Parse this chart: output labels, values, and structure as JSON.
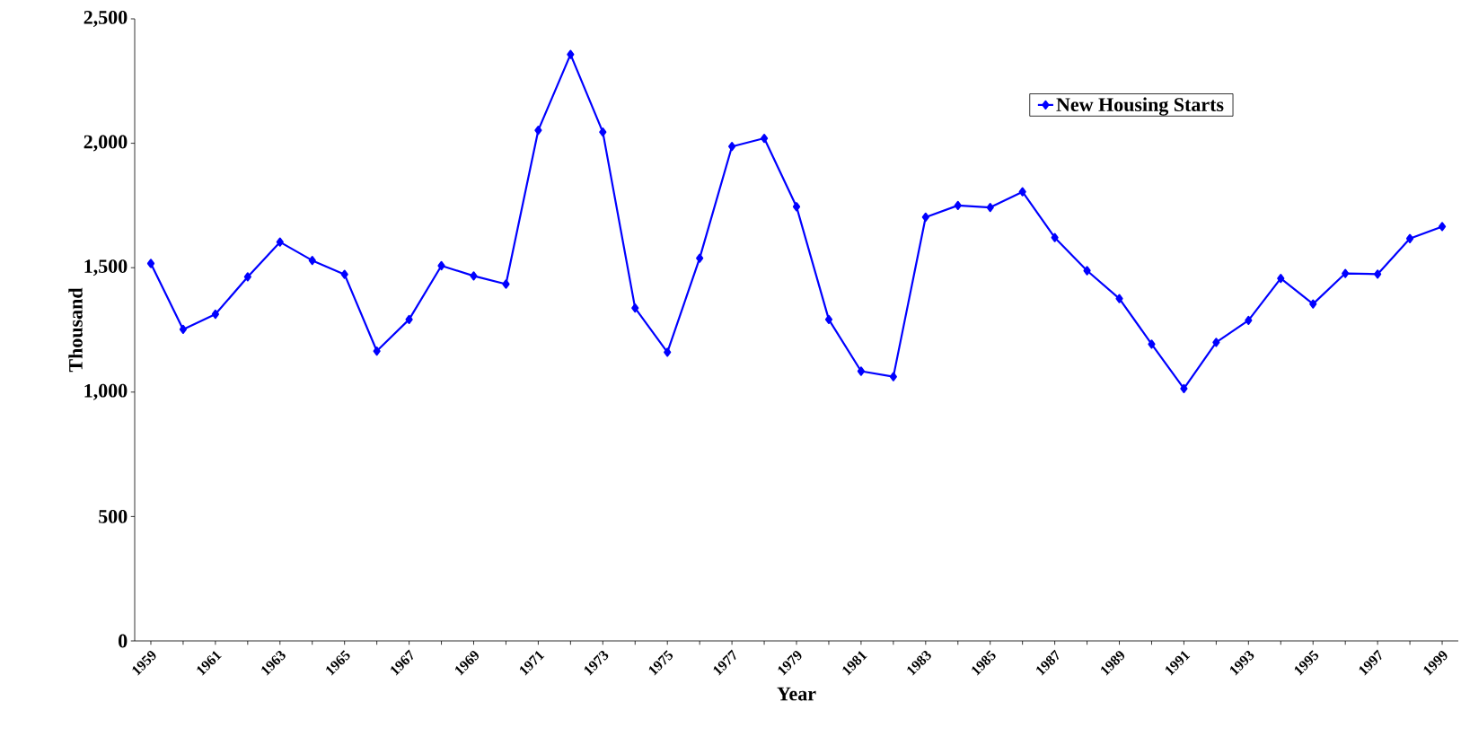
{
  "chart_data": {
    "type": "line",
    "xlabel": "Year",
    "ylabel": "Thousand",
    "categories": [
      "1959",
      null,
      "1961",
      null,
      "1963",
      null,
      "1965",
      null,
      "1967",
      null,
      "1969",
      null,
      "1971",
      null,
      "1973",
      null,
      "1975",
      null,
      "1977",
      null,
      "1979",
      null,
      "1981",
      null,
      "1983",
      null,
      "1985",
      null,
      "1987",
      null,
      "1989",
      null,
      "1991",
      null,
      "1993",
      null,
      "1995",
      null,
      "1997",
      null,
      "1999"
    ],
    "series": [
      {
        "name": "New Housing Starts",
        "color": "#0000ff",
        "values": [
          1517,
          1252,
          1313,
          1463,
          1603,
          1529,
          1473,
          1165,
          1292,
          1508,
          1467,
          1434,
          2052,
          2357,
          2045,
          1338,
          1160,
          1538,
          1987,
          2020,
          1745,
          1292,
          1084,
          1062,
          1703,
          1750,
          1742,
          1805,
          1621,
          1488,
          1376,
          1193,
          1014,
          1200,
          1288,
          1457,
          1354,
          1477,
          1474,
          1617,
          1665
        ]
      }
    ],
    "ylim": [
      0,
      2500
    ],
    "yticks": [
      {
        "value": 0,
        "label": "0"
      },
      {
        "value": 500,
        "label": "500"
      },
      {
        "value": 1000,
        "label": "1,000"
      },
      {
        "value": 1500,
        "label": "1,500"
      },
      {
        "value": 2000,
        "label": "2,000"
      },
      {
        "value": 2500,
        "label": "2,500"
      }
    ],
    "grid": false,
    "legend": "top right",
    "marker": "diamond",
    "line_style": "solid"
  }
}
